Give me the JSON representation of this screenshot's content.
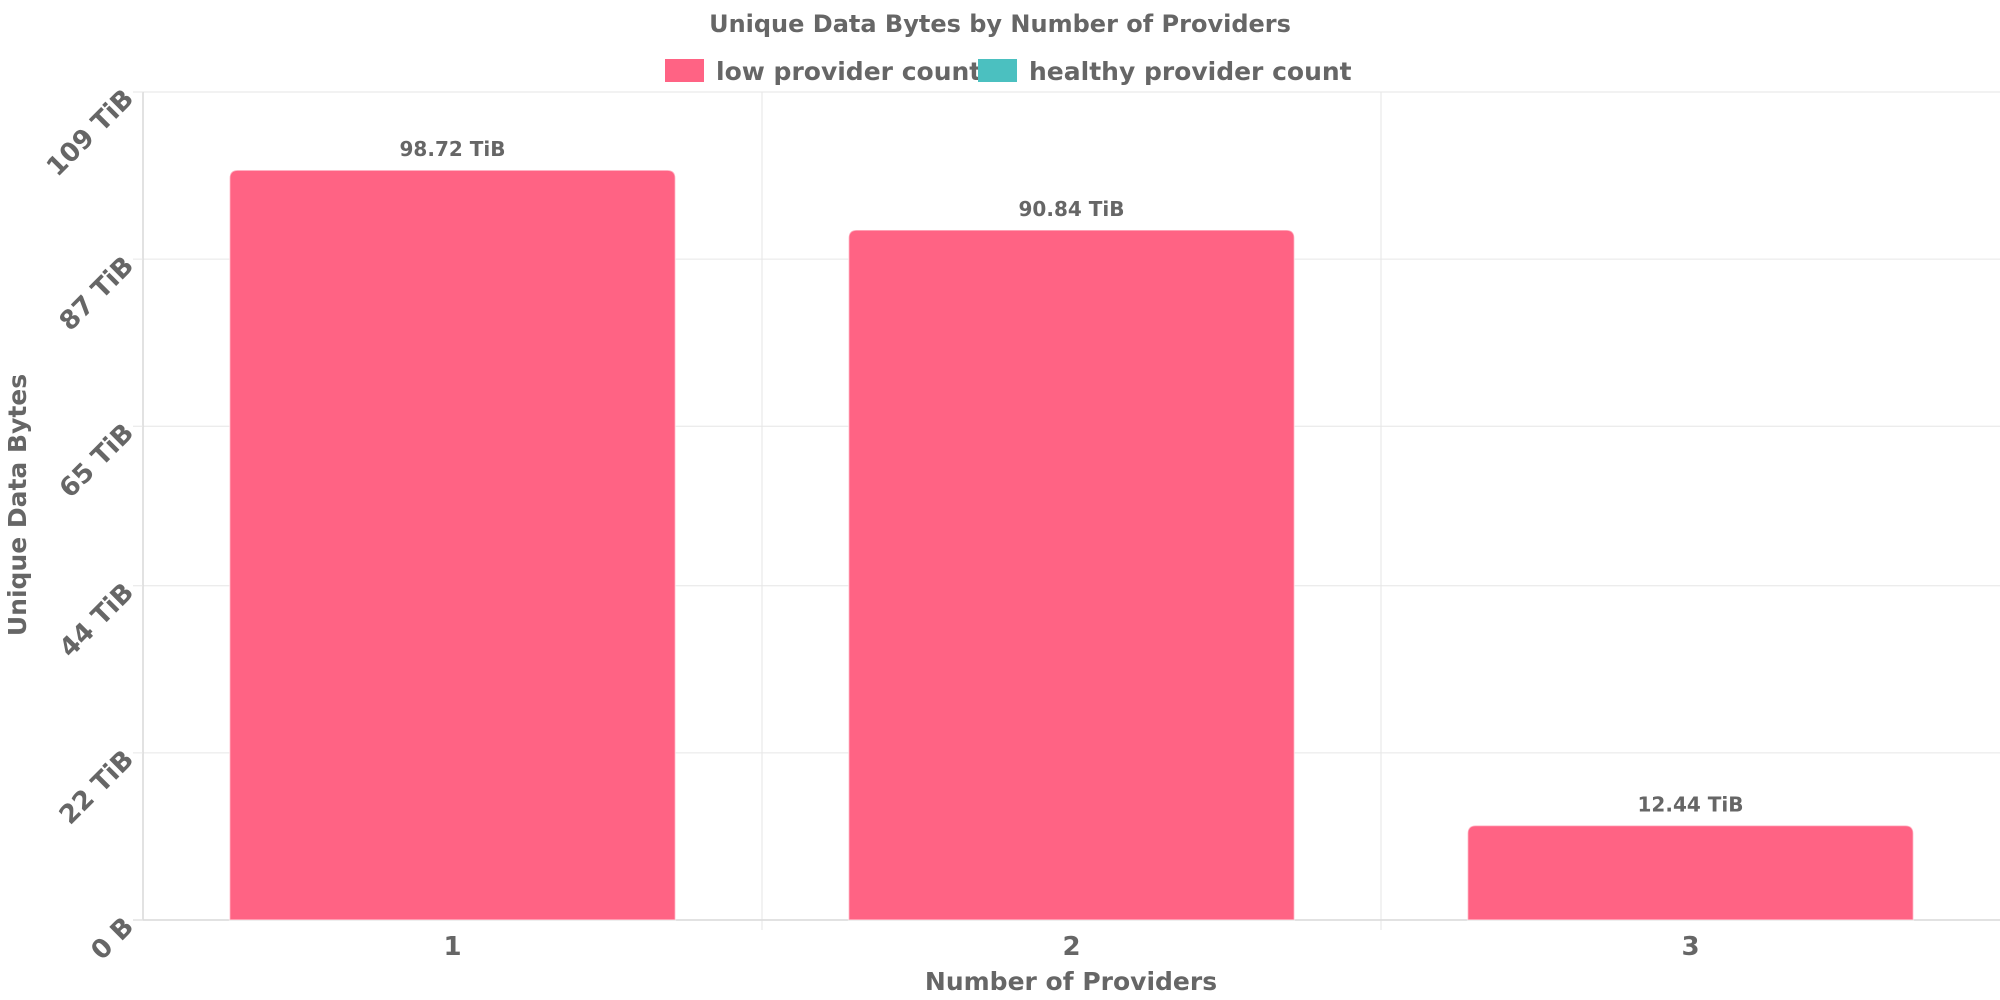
{
  "chart_data": {
    "type": "bar",
    "title": "Unique Data Bytes by Number of Providers",
    "xlabel": "Number of Providers",
    "ylabel": "Unique Data Bytes",
    "categories": [
      "1",
      "2",
      "3"
    ],
    "series": [
      {
        "name": "low provider count",
        "color": "#ff6384",
        "values": [
          98.72,
          90.84,
          12.44
        ],
        "labels": [
          "98.72 TiB",
          "90.84 TiB",
          "12.44 TiB"
        ]
      },
      {
        "name": "healthy provider count",
        "color": "#4bc0c0",
        "values": [
          0,
          0,
          0
        ],
        "labels": []
      }
    ],
    "unit": "TiB",
    "ylim": [
      0,
      109
    ],
    "yticks": [
      0,
      22,
      44,
      65,
      87,
      109
    ],
    "ytick_labels": [
      "0 B",
      "22 TiB",
      "44 TiB",
      "65 TiB",
      "87 TiB",
      "109 TiB"
    ],
    "grid": true,
    "legend_position": "top"
  }
}
